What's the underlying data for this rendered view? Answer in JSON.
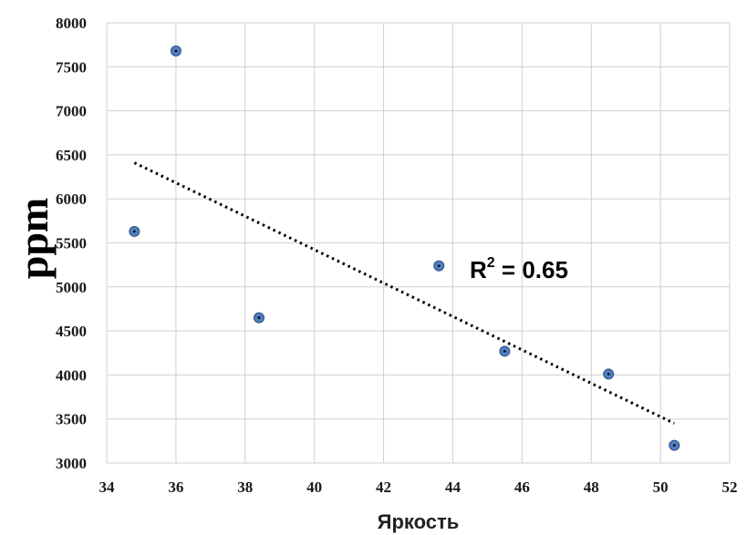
{
  "chart_data": {
    "type": "scatter",
    "xlabel": "Яркость",
    "ylabel": "ppm",
    "xlim": [
      34,
      52
    ],
    "ylim": [
      3000,
      8000
    ],
    "xticks": [
      34,
      36,
      38,
      40,
      42,
      44,
      46,
      48,
      50,
      52
    ],
    "yticks": [
      3000,
      3500,
      4000,
      4500,
      5000,
      5500,
      6000,
      6500,
      7000,
      7500,
      8000
    ],
    "grid": true,
    "points": [
      {
        "x": 34.8,
        "y": 5630
      },
      {
        "x": 36.0,
        "y": 7680
      },
      {
        "x": 38.4,
        "y": 4650
      },
      {
        "x": 43.6,
        "y": 5240
      },
      {
        "x": 45.5,
        "y": 4270
      },
      {
        "x": 48.5,
        "y": 4010
      },
      {
        "x": 50.4,
        "y": 3200
      }
    ],
    "trendline": {
      "style": "dotted",
      "x": [
        34.8,
        50.4
      ],
      "y": [
        6410,
        3450
      ]
    },
    "annotation": {
      "prefix": "R",
      "sup": "2",
      "suffix": " = 0.65"
    },
    "colors": {
      "marker": "#4f7ec0",
      "marker_edge": "#2f4f7f",
      "trend": "#000000",
      "grid": "#d0d0d0"
    }
  }
}
